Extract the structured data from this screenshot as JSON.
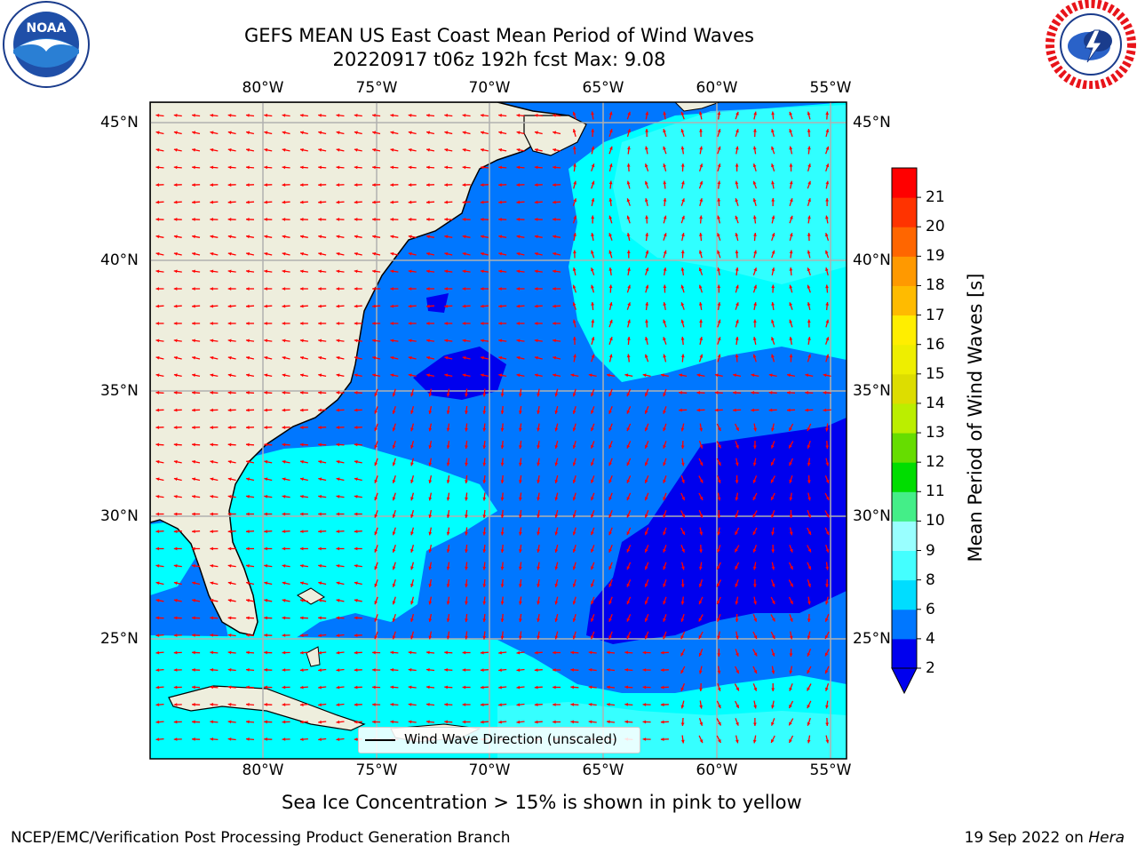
{
  "header": {
    "title_line1": "GEFS MEAN US East Coast Mean Period of Wind Waves",
    "title_line2": "20220917 t06z 192h fcst   Max: 9.08"
  },
  "logos": {
    "noaa": {
      "label": "NOAA",
      "ring_text": "NATIONAL OCEANIC AND ATMOSPHERIC ADMINISTRATION · U.S. DEPARTMENT OF COMMERCE"
    },
    "nws": {
      "ring_text": "NATIONAL WEATHER SERVICE"
    }
  },
  "map": {
    "lon_labels": [
      "80°W",
      "75°W",
      "70°W",
      "65°W",
      "60°W",
      "55°W"
    ],
    "lat_labels": [
      "45°N",
      "40°N",
      "35°N",
      "30°N",
      "25°N"
    ],
    "land_color": "#eeeedd",
    "legend_text": "Wind Wave Direction (unscaled)",
    "arrow_color": "#ff0000"
  },
  "colorbar": {
    "title": "Mean Period of Wind Waves [s]",
    "ticks": [
      "2",
      "4",
      "6",
      "8",
      "9",
      "10",
      "11",
      "12",
      "13",
      "14",
      "15",
      "16",
      "17",
      "18",
      "19",
      "20",
      "21"
    ],
    "colors": [
      "#0000ee",
      "#0077ff",
      "#00ddff",
      "#44ffff",
      "#99ffff",
      "#44ee88",
      "#00dd00",
      "#66dd00",
      "#bbee00",
      "#dddd00",
      "#eeee00",
      "#ffee00",
      "#ffbb00",
      "#ff9900",
      "#ff6600",
      "#ff3300",
      "#ff0000"
    ]
  },
  "notes": {
    "sea_ice": "Sea Ice Concentration > 15% is shown in pink to yellow"
  },
  "footer": {
    "left": "NCEP/EMC/Verification Post Processing Product Generation Branch",
    "right_date": "19 Sep 2022 on",
    "right_host": "Hera"
  }
}
